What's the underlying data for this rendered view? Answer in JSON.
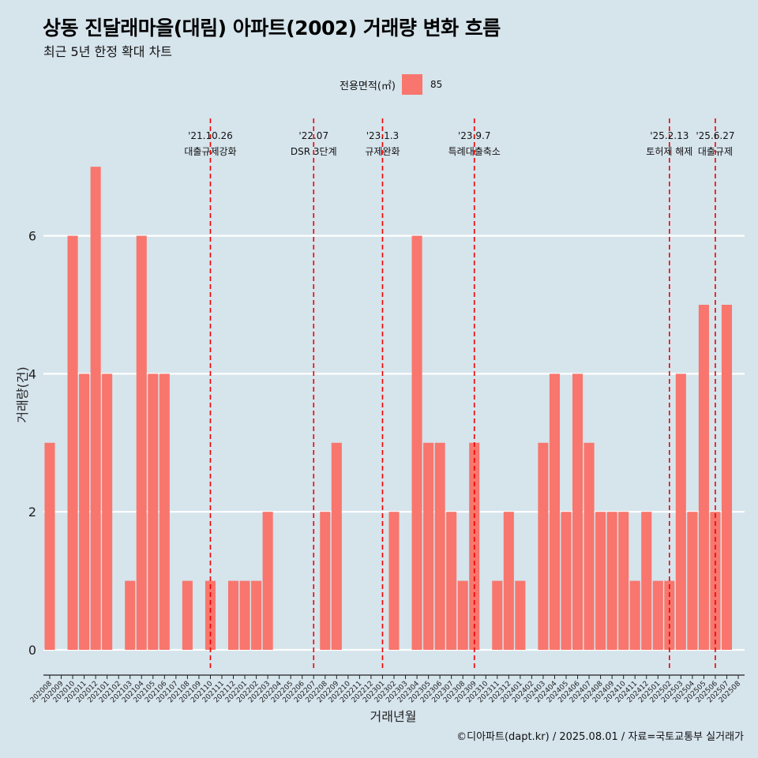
{
  "title": "상동 진달래마을(대림) 아파트(2002) 거래량 변화 흐름",
  "subtitle": "최근 5년 한정 확대 차트",
  "legend": {
    "title": "전용면적(㎡)",
    "entries": [
      {
        "label": "85",
        "color": "#f8766d"
      }
    ]
  },
  "caption": "©디아파트(dapt.kr) / 2025.08.01 / 자료=국토교통부 실거래가",
  "chart_data": {
    "type": "bar",
    "xlabel": "거래년월",
    "ylabel": "거래량(건)",
    "ylim": [
      0,
      7.5
    ],
    "yticks": [
      0,
      2,
      4,
      6
    ],
    "bar_color": "#f8766d",
    "categories": [
      "202008",
      "202009",
      "202010",
      "202011",
      "202012",
      "202101",
      "202102",
      "202103",
      "202104",
      "202105",
      "202106",
      "202107",
      "202108",
      "202109",
      "202110",
      "202111",
      "202112",
      "202201",
      "202202",
      "202203",
      "202204",
      "202205",
      "202206",
      "202207",
      "202208",
      "202209",
      "202210",
      "202211",
      "202212",
      "202301",
      "202302",
      "202303",
      "202304",
      "202305",
      "202306",
      "202307",
      "202308",
      "202309",
      "202310",
      "202311",
      "202312",
      "202401",
      "202402",
      "202403",
      "202404",
      "202405",
      "202406",
      "202407",
      "202408",
      "202409",
      "202410",
      "202411",
      "202412",
      "202501",
      "202502",
      "202503",
      "202504",
      "202505",
      "202506",
      "202507",
      "202508"
    ],
    "series": [
      {
        "values": [
          3,
          0,
          6,
          4,
          7,
          4,
          0,
          1,
          6,
          4,
          4,
          0,
          1,
          0,
          1,
          0,
          1,
          1,
          1,
          2,
          0,
          0,
          0,
          0,
          2,
          3,
          0,
          0,
          0,
          0,
          2,
          0,
          6,
          3,
          3,
          2,
          1,
          3,
          0,
          1,
          2,
          1,
          0,
          3,
          4,
          2,
          4,
          3,
          2,
          2,
          2,
          1,
          2,
          1,
          1,
          4,
          2,
          5,
          2,
          5,
          0
        ]
      }
    ],
    "annotations": [
      {
        "date": "'21.10.26",
        "text": "대출규제강화",
        "x_category": "202110"
      },
      {
        "date": "'22.07",
        "text": "DSR 3단계",
        "x_category": "202207"
      },
      {
        "date": "'23.1.3",
        "text": "규제완화",
        "x_category": "202301"
      },
      {
        "date": "'23.9.7",
        "text": "특례대출축소",
        "x_category": "202309"
      },
      {
        "date": "'25.2.13",
        "text": "토허제 해제",
        "x_category": "202502"
      },
      {
        "date": "'25.6.27",
        "text": "대출규제",
        "x_category": "202506"
      }
    ]
  }
}
